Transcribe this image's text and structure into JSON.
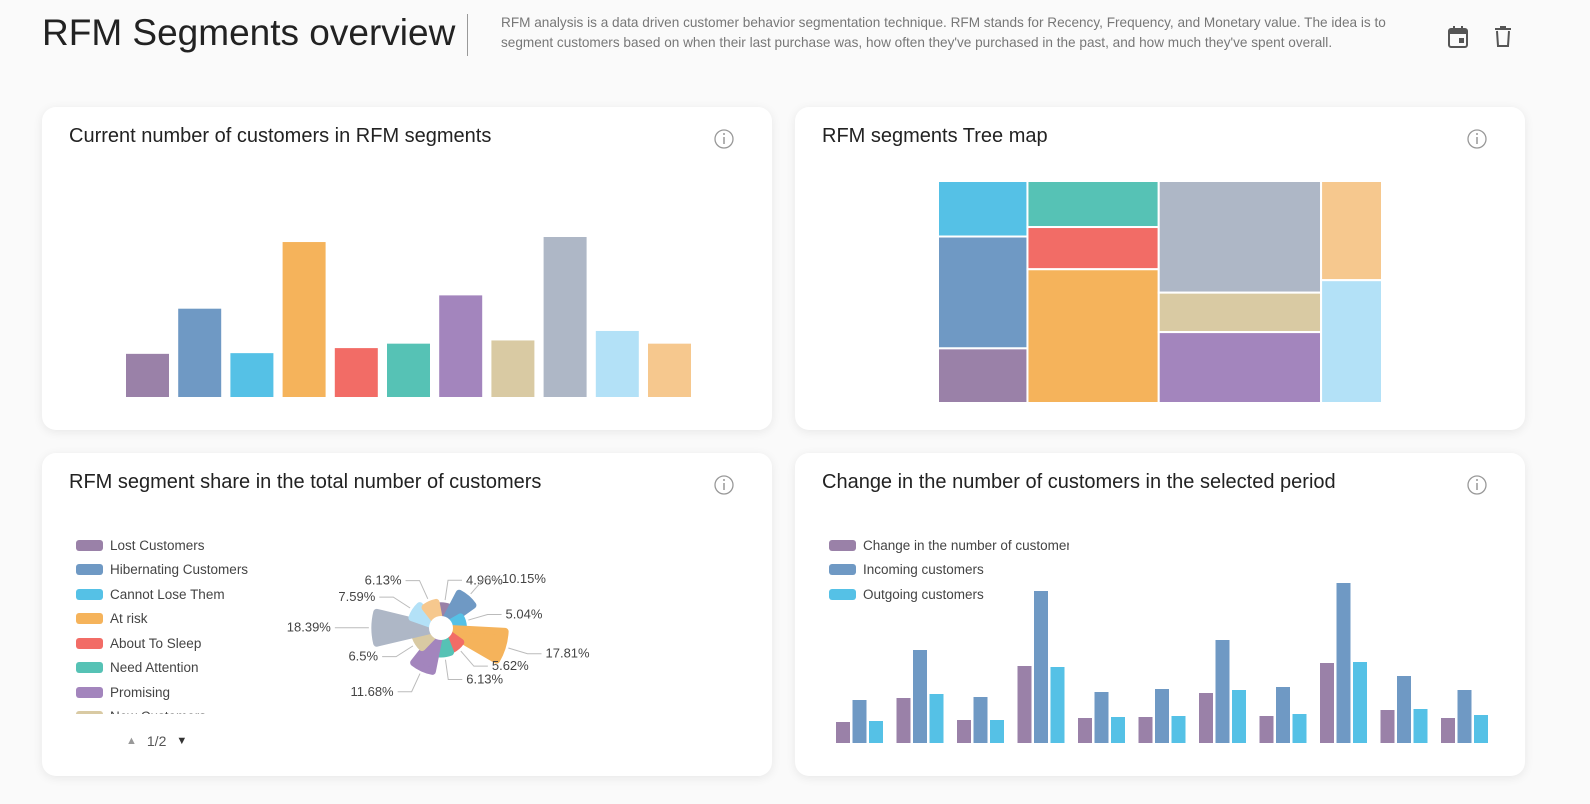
{
  "header": {
    "title": "RFM Segments overview",
    "description": "RFM analysis is a data driven customer behavior segmentation technique. RFM stands for Recency, Frequency, and Monetary value. The idea is to segment customers based on when their last purchase was, how often they've purchased in the past, and how much they've spent overall."
  },
  "chart_data": [
    {
      "type": "bar",
      "title": "Current number of customers in RFM segments",
      "values": [
        4.96,
        10.15,
        5.04,
        17.81,
        5.62,
        6.13,
        11.68,
        6.5,
        18.39,
        7.59,
        6.13
      ],
      "colors": [
        "#9a81a8",
        "#6f99c4",
        "#55c1e6",
        "#f5b35b",
        "#f26c66",
        "#56c2b5",
        "#a385bd",
        "#d9caa3",
        "#aeb7c6",
        "#b3e1f7",
        "#f6c88e"
      ]
    },
    {
      "type": "treemap",
      "title": "RFM segments Tree map",
      "values": [
        4.96,
        10.15,
        5.04,
        17.81,
        5.62,
        6.13,
        11.68,
        6.5,
        18.39,
        7.59,
        6.13
      ],
      "colors": [
        "#9a81a8",
        "#6f99c4",
        "#55c1e6",
        "#f5b35b",
        "#f26c66",
        "#56c2b5",
        "#a385bd",
        "#d9caa3",
        "#aeb7c6",
        "#b3e1f7",
        "#f6c88e"
      ]
    },
    {
      "type": "rose",
      "title": "RFM segment share in the total number of customers",
      "categories": [
        "Lost Customers",
        "Hibernating Customers",
        "Cannot Lose Them",
        "At risk",
        "About To Sleep",
        "Need Attention",
        "Promising",
        "New Customers",
        null,
        null,
        null
      ],
      "values": [
        4.96,
        10.15,
        5.04,
        17.81,
        5.62,
        6.13,
        11.68,
        6.5,
        18.39,
        7.59,
        6.13
      ],
      "value_labels": [
        "4.96%",
        "10.15%",
        "5.04%",
        "17.81%",
        "5.62%",
        "6.13%",
        "11.68%",
        "6.5%",
        "18.39%",
        "7.59%",
        "6.13%"
      ],
      "colors": [
        "#9a81a8",
        "#6f99c4",
        "#55c1e6",
        "#f5b35b",
        "#f26c66",
        "#56c2b5",
        "#a385bd",
        "#d9caa3",
        "#aeb7c6",
        "#b3e1f7",
        "#f6c88e"
      ],
      "legend_page": "1/2"
    },
    {
      "type": "grouped-bar",
      "title": "Change in the number of customers in the selected period",
      "series": [
        {
          "name": "Change in the number of customers",
          "color": "#9a81a8",
          "values": [
            21,
            45,
            23,
            77,
            25,
            26,
            50,
            27,
            80,
            33,
            25
          ]
        },
        {
          "name": "Incoming customers",
          "color": "#6f99c4",
          "values": [
            43,
            93,
            46,
            152,
            51,
            54,
            103,
            56,
            160,
            67,
            53
          ]
        },
        {
          "name": "Outgoing customers",
          "color": "#55c1e6",
          "values": [
            22,
            49,
            23,
            76,
            26,
            27,
            53,
            29,
            81,
            34,
            28
          ]
        }
      ]
    }
  ]
}
